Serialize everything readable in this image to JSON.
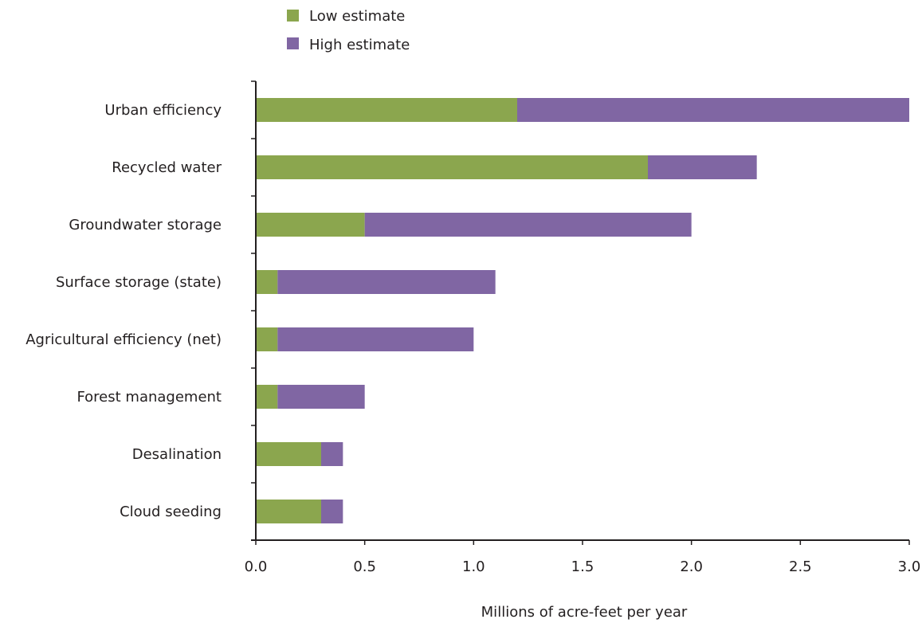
{
  "chart_data": {
    "type": "bar",
    "orientation": "horizontal",
    "stacked": true,
    "categories": [
      "Urban efficiency",
      "Recycled water",
      "Groundwater storage",
      "Surface storage (state)",
      "Agricultural efficiency (net)",
      "Forest management",
      "Desalination",
      "Cloud seeding"
    ],
    "series": [
      {
        "name": "Low estimate",
        "color": "#8ba64e",
        "values": [
          1.2,
          1.8,
          0.5,
          0.1,
          0.1,
          0.1,
          0.3,
          0.3
        ]
      },
      {
        "name": "High estimate",
        "color": "#8066a3",
        "values": [
          1.8,
          0.5,
          1.5,
          1.0,
          0.9,
          0.4,
          0.1,
          0.1
        ]
      }
    ],
    "totals": [
      3.0,
      2.3,
      2.0,
      1.1,
      1.0,
      0.5,
      0.4,
      0.4
    ],
    "xlim": [
      0,
      3.0
    ],
    "xticks": [
      "0.0",
      "0.5",
      "1.0",
      "1.5",
      "2.0",
      "2.5",
      "3.0"
    ],
    "xtick_values": [
      0,
      0.5,
      1.0,
      1.5,
      2.0,
      2.5,
      3.0
    ],
    "xlabel": "Millions of acre-feet per year",
    "ylabel": "",
    "title": "",
    "legend_position": "top",
    "grid": false
  }
}
